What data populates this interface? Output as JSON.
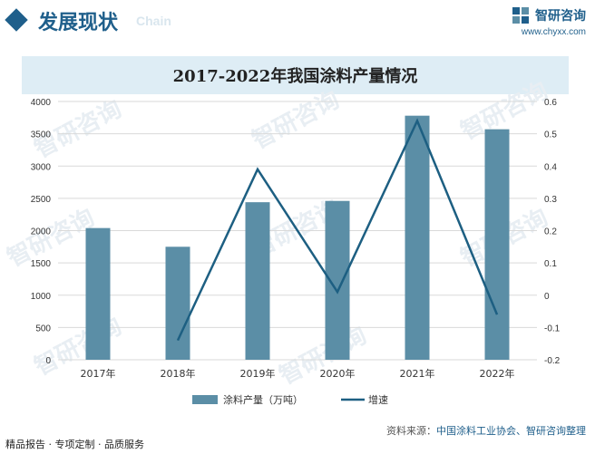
{
  "header": {
    "section_title": "发展现状",
    "section_sub": "Chain",
    "brand_name": "智研咨询",
    "brand_url": "www.chyxx.com"
  },
  "chart_data": {
    "type": "bar+line",
    "title": "2017-2022年我国涂料产量情况",
    "categories": [
      "2017年",
      "2018年",
      "2019年",
      "2020年",
      "2021年",
      "2022年"
    ],
    "series": [
      {
        "name": "涂料产量（万吨）",
        "type": "bar",
        "axis": "left",
        "color": "#5b8ea6",
        "values": [
          2040,
          1750,
          2440,
          2460,
          3780,
          3570
        ]
      },
      {
        "name": "增速",
        "type": "line",
        "axis": "right",
        "color": "#1d5f82",
        "values": [
          null,
          -0.14,
          0.39,
          0.01,
          0.54,
          -0.06
        ]
      }
    ],
    "yleft": {
      "min": 0,
      "max": 4000,
      "ticks": [
        "0",
        "500",
        "1000",
        "1500",
        "2000",
        "2500",
        "3000",
        "3500",
        "4000"
      ]
    },
    "yright": {
      "min": -0.2,
      "max": 0.6,
      "ticks": [
        "-0.2",
        "-0.1",
        "0",
        "0.1",
        "0.2",
        "0.3",
        "0.4",
        "0.5",
        "0.6"
      ]
    },
    "grid": "horizontal",
    "legend": "bottom-center"
  },
  "footer": {
    "services": "精品报告 · 专项定制 · 品质服务",
    "source_label": "资料来源：",
    "source_text": "中国涂料工业协会、智研咨询整理"
  },
  "watermark": "智研咨询"
}
